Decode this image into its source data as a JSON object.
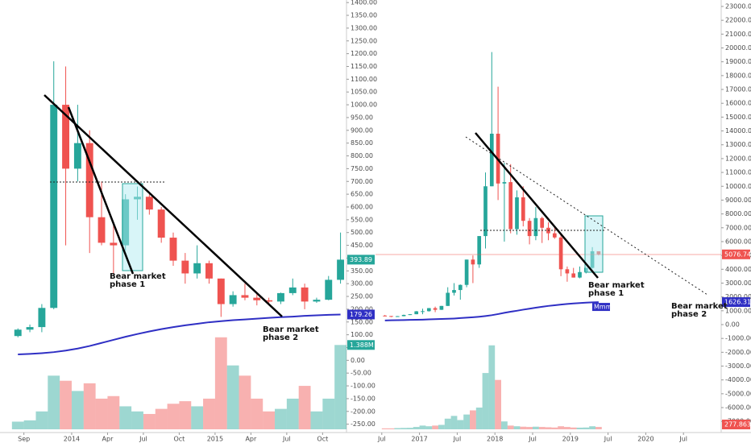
{
  "chart_data": [
    {
      "type": "candlestick",
      "x": [
        "2013-08",
        "2013-09",
        "2013-10",
        "2013-11",
        "2013-12",
        "2014-01",
        "2014-02",
        "2014-03",
        "2014-04",
        "2014-05",
        "2014-06",
        "2014-07",
        "2014-08",
        "2014-09",
        "2014-10",
        "2014-11",
        "2014-12",
        "2015-01",
        "2015-02",
        "2015-03",
        "2015-04",
        "2015-05",
        "2015-06",
        "2015-07",
        "2015-08",
        "2015-09",
        "2015-10",
        "2015-11"
      ],
      "open": [
        95,
        120,
        130,
        205,
        1000,
        750,
        850,
        560,
        460,
        450,
        630,
        640,
        590,
        480,
        390,
        340,
        380,
        320,
        220,
        255,
        245,
        235,
        230,
        263,
        285,
        230,
        237,
        315
      ],
      "high": [
        125,
        140,
        220,
        1170,
        1150,
        1000,
        900,
        700,
        540,
        650,
        680,
        650,
        600,
        500,
        420,
        450,
        390,
        320,
        270,
        300,
        260,
        245,
        265,
        320,
        300,
        245,
        330,
        500
      ],
      "low": [
        90,
        110,
        110,
        200,
        450,
        700,
        420,
        450,
        340,
        430,
        550,
        570,
        460,
        370,
        300,
        320,
        300,
        170,
        210,
        235,
        215,
        225,
        220,
        255,
        200,
        225,
        235,
        300
      ],
      "close": [
        120,
        130,
        205,
        1000,
        750,
        850,
        560,
        460,
        450,
        630,
        640,
        590,
        480,
        390,
        340,
        380,
        320,
        220,
        255,
        245,
        235,
        230,
        263,
        285,
        230,
        237,
        315,
        393.89
      ],
      "ma": {
        "color": "#2f2fc4",
        "values": [
          23,
          25,
          28,
          32,
          38,
          46,
          56,
          68,
          80,
          92,
          103,
          113,
          122,
          130,
          137,
          143,
          149,
          153,
          157,
          160,
          163,
          166,
          169,
          171,
          174,
          176,
          178,
          179.26
        ]
      },
      "volume": {
        "values": [
          -240,
          -235,
          -200,
          -60,
          -80,
          -120,
          -90,
          -150,
          -140,
          -180,
          -200,
          -210,
          -190,
          -170,
          -160,
          -180,
          -150,
          90,
          -20,
          -60,
          -150,
          -200,
          -190,
          -150,
          -100,
          -200,
          -150,
          60
        ],
        "label": "1.388M"
      },
      "up_color": "#26a69a",
      "down_color": "#ef5350",
      "xlim": [
        "2013-07",
        "2015-12"
      ],
      "xticks": [
        {
          "value": "2013-09",
          "label": "Sep"
        },
        {
          "value": "2014-01",
          "label": "2014"
        },
        {
          "value": "2014-04",
          "label": "Apr"
        },
        {
          "value": "2014-07",
          "label": "Jul"
        },
        {
          "value": "2014-10",
          "label": "Oct"
        },
        {
          "value": "2015-01",
          "label": "2015"
        },
        {
          "value": "2015-04",
          "label": "Apr"
        },
        {
          "value": "2015-07",
          "label": "Jul"
        },
        {
          "value": "2015-10",
          "label": "Oct"
        }
      ],
      "ylim": [
        -270,
        1410
      ],
      "yticks": [
        {
          "value": 1400,
          "label": "1400.00"
        },
        {
          "value": 1350,
          "label": "1350.00"
        },
        {
          "value": 1300,
          "label": "1300.00"
        },
        {
          "value": 1250,
          "label": "1250.00"
        },
        {
          "value": 1200,
          "label": "1200.00"
        },
        {
          "value": 1150,
          "label": "1150.00"
        },
        {
          "value": 1100,
          "label": "1100.00"
        },
        {
          "value": 1050,
          "label": "1050.00"
        },
        {
          "value": 1000,
          "label": "1000.00"
        },
        {
          "value": 950,
          "label": "950.00"
        },
        {
          "value": 900,
          "label": "900.00"
        },
        {
          "value": 850,
          "label": "850.00"
        },
        {
          "value": 800,
          "label": "800.00"
        },
        {
          "value": 750,
          "label": "750.00"
        },
        {
          "value": 700,
          "label": "700.00"
        },
        {
          "value": 650,
          "label": "650.00"
        },
        {
          "value": 600,
          "label": "600.00"
        },
        {
          "value": 550,
          "label": "550.00"
        },
        {
          "value": 500,
          "label": "500.00"
        },
        {
          "value": 450,
          "label": "450.00"
        },
        {
          "value": 400,
          "label": "400.00"
        },
        {
          "value": 350,
          "label": "350.00"
        },
        {
          "value": 300,
          "label": "300.00"
        },
        {
          "value": 250,
          "label": "250.00"
        },
        {
          "value": 200,
          "label": "200.00"
        },
        {
          "value": 150,
          "label": "150.00"
        },
        {
          "value": 100,
          "label": "100.00"
        },
        {
          "value": 50,
          "label": "50.00"
        },
        {
          "value": 0,
          "label": "0.00"
        },
        {
          "value": -50,
          "label": "-50.00"
        },
        {
          "value": -100,
          "label": "-100.00"
        },
        {
          "value": -150,
          "label": "-150.00"
        },
        {
          "value": -200,
          "label": "-200.00"
        },
        {
          "value": -250,
          "label": "-250.00"
        }
      ],
      "annotations": [
        [
          "Bear market",
          "phase 1"
        ],
        [
          "Bear market",
          "phase 2"
        ]
      ]
    },
    {
      "type": "candlestick",
      "x": [
        "2016-07",
        "2016-08",
        "2016-09",
        "2016-10",
        "2016-11",
        "2016-12",
        "2017-01",
        "2017-02",
        "2017-03",
        "2017-04",
        "2017-05",
        "2017-06",
        "2017-07",
        "2017-08",
        "2017-09",
        "2017-10",
        "2017-11",
        "2017-12",
        "2018-01",
        "2018-02",
        "2018-03",
        "2018-04",
        "2018-05",
        "2018-06",
        "2018-07",
        "2018-08",
        "2018-09",
        "2018-10",
        "2018-11",
        "2018-12",
        "2019-01",
        "2019-02",
        "2019-03",
        "2019-04",
        "2019-05"
      ],
      "open": [
        650,
        620,
        575,
        610,
        700,
        750,
        960,
        970,
        1190,
        1070,
        1350,
        2300,
        2500,
        2870,
        4700,
        4350,
        6400,
        10000,
        13800,
        10200,
        10300,
        6900,
        9200,
        7500,
        6400,
        7700,
        7000,
        6600,
        6300,
        4000,
        3700,
        3400,
        3800,
        4100,
        5300
      ],
      "high": [
        700,
        620,
        620,
        720,
        760,
        980,
        1150,
        1200,
        1300,
        1350,
        2700,
        3000,
        2900,
        4700,
        5000,
        6400,
        11000,
        19700,
        17200,
        11700,
        11600,
        9700,
        10000,
        7700,
        8500,
        7800,
        7400,
        7000,
        6600,
        4200,
        4100,
        4200,
        4100,
        5600,
        5300
      ],
      "low": [
        600,
        540,
        570,
        600,
        690,
        750,
        750,
        940,
        900,
        1060,
        1350,
        2100,
        1800,
        2700,
        3000,
        4100,
        5500,
        10000,
        9000,
        6000,
        6600,
        6500,
        7100,
        5800,
        6100,
        5900,
        6100,
        6200,
        3500,
        3100,
        3400,
        3350,
        3700,
        4050,
        5000
      ],
      "close": [
        620,
        575,
        610,
        700,
        750,
        960,
        970,
        1190,
        1070,
        1350,
        2300,
        2500,
        2870,
        4700,
        4350,
        6400,
        10000,
        13800,
        10200,
        10300,
        6900,
        9200,
        7500,
        6400,
        7700,
        7000,
        6600,
        6300,
        4000,
        3700,
        3400,
        3800,
        4100,
        5300,
        5076.74
      ],
      "ma": {
        "color": "#2f2fc4",
        "values": [
          300,
          310,
          320,
          330,
          340,
          350,
          360,
          375,
          390,
          405,
          420,
          440,
          470,
          500,
          530,
          570,
          620,
          680,
          760,
          850,
          930,
          1000,
          1080,
          1150,
          1220,
          1290,
          1350,
          1400,
          1450,
          1490,
          1530,
          1560,
          1590,
          1610,
          1626.31
        ]
      },
      "volume": {
        "values": [
          -7500,
          -7500,
          -7480,
          -7470,
          -7460,
          -7400,
          -7300,
          -7350,
          -7300,
          -7250,
          -6800,
          -6600,
          -6900,
          -6500,
          -6200,
          -6000,
          -3500,
          -1500,
          -4000,
          -7000,
          -7300,
          -7350,
          -7380,
          -7400,
          -7380,
          -7400,
          -7420,
          -7440,
          -7350,
          -7400,
          -7440,
          -7450,
          -7440,
          -7350,
          -7400
        ],
        "label": "277.863K"
      },
      "up_color": "#26a69a",
      "down_color": "#ef5350",
      "ma_tag": "Mmm",
      "xlim": [
        "2016-06",
        "2021-01"
      ],
      "xticks": [
        {
          "value": "2016-07",
          "label": "Jul"
        },
        {
          "value": "2017-01",
          "label": "2017"
        },
        {
          "value": "2017-07",
          "label": "Jul"
        },
        {
          "value": "2018-01",
          "label": "2018"
        },
        {
          "value": "2018-07",
          "label": "Jul"
        },
        {
          "value": "2019-01",
          "label": "2019"
        },
        {
          "value": "2019-07",
          "label": "Jul"
        },
        {
          "value": "2020-01",
          "label": "2020"
        },
        {
          "value": "2020-07",
          "label": "Jul"
        }
      ],
      "ylim": [
        -7570,
        23466
      ],
      "yticks": [
        {
          "value": 23000,
          "label": "23000.00"
        },
        {
          "value": 22000,
          "label": "22000.00"
        },
        {
          "value": 21000,
          "label": "21000.00"
        },
        {
          "value": 20000,
          "label": "20000.00"
        },
        {
          "value": 19000,
          "label": "19000.00"
        },
        {
          "value": 18000,
          "label": "18000.00"
        },
        {
          "value": 17000,
          "label": "17000.00"
        },
        {
          "value": 16000,
          "label": "16000.00"
        },
        {
          "value": 15000,
          "label": "15000.00"
        },
        {
          "value": 14000,
          "label": "14000.00"
        },
        {
          "value": 13000,
          "label": "13000.00"
        },
        {
          "value": 12000,
          "label": "12000.00"
        },
        {
          "value": 11000,
          "label": "11000.00"
        },
        {
          "value": 10000,
          "label": "10000.00"
        },
        {
          "value": 9000,
          "label": "9000.00"
        },
        {
          "value": 8000,
          "label": "8000.00"
        },
        {
          "value": 7000,
          "label": "7000.00"
        },
        {
          "value": 6000,
          "label": "6000.00"
        },
        {
          "value": 5000,
          "label": "5000.00"
        },
        {
          "value": 4000,
          "label": "4000.00"
        },
        {
          "value": 3000,
          "label": "3000.00"
        },
        {
          "value": 2000,
          "label": "2000.00"
        },
        {
          "value": 1000,
          "label": "1000.00"
        },
        {
          "value": 0,
          "label": "0.00"
        },
        {
          "value": -1000,
          "label": "-1000.00"
        },
        {
          "value": -2000,
          "label": "-2000.00"
        },
        {
          "value": -3000,
          "label": "-3000.00"
        },
        {
          "value": -4000,
          "label": "-4000.00"
        },
        {
          "value": -5000,
          "label": "-5000.00"
        },
        {
          "value": -6000,
          "label": "-6000.00"
        },
        {
          "value": -7000,
          "label": "-7000.00"
        }
      ],
      "annotations": [
        [
          "Bear market",
          "phase 1"
        ],
        [
          "Bear market",
          "phase 2"
        ]
      ]
    }
  ]
}
